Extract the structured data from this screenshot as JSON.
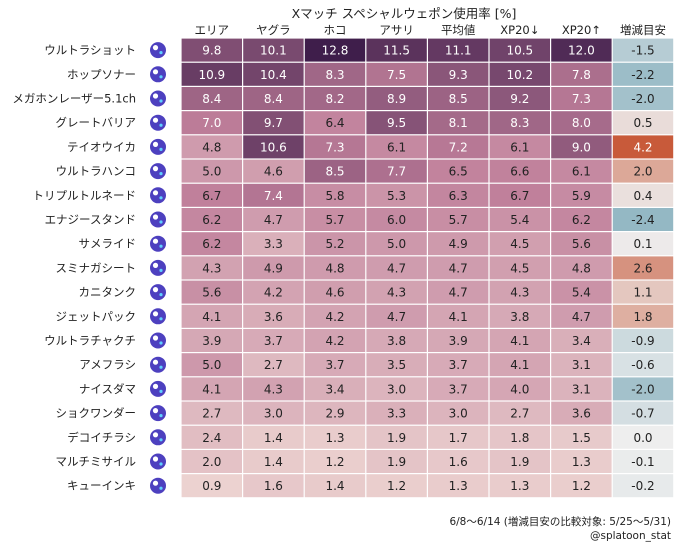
{
  "chart_data": {
    "type": "heatmap",
    "title": "Xマッチ スペシャルウェポン使用率 [%]",
    "columns": [
      "エリア",
      "ヤグラ",
      "ホコ",
      "アサリ",
      "平均値",
      "XP20↓",
      "XP20↑",
      "増減目安"
    ],
    "rows": [
      {
        "name": "ウルトラショット",
        "icon": "ultra-shot-icon",
        "values": [
          9.8,
          10.1,
          12.8,
          11.5,
          11.1,
          10.5,
          12.0
        ],
        "change": -1.5
      },
      {
        "name": "ホップソナー",
        "icon": "wave-breaker-icon",
        "values": [
          10.9,
          10.4,
          8.3,
          7.5,
          9.3,
          10.2,
          7.8
        ],
        "change": -2.2
      },
      {
        "name": "メガホンレーザー5.1ch",
        "icon": "killer-wail-icon",
        "values": [
          8.4,
          8.4,
          8.2,
          8.9,
          8.5,
          9.2,
          7.3
        ],
        "change": -2.0
      },
      {
        "name": "グレートバリア",
        "icon": "big-bubbler-icon",
        "values": [
          7.0,
          9.7,
          6.4,
          9.5,
          8.1,
          8.3,
          8.0
        ],
        "change": 0.5
      },
      {
        "name": "テイオウイカ",
        "icon": "kraken-royale-icon",
        "values": [
          4.8,
          10.6,
          7.3,
          6.1,
          7.2,
          6.1,
          9.0
        ],
        "change": 4.2
      },
      {
        "name": "ウルトラハンコ",
        "icon": "ultra-stamp-icon",
        "values": [
          5.0,
          4.6,
          8.5,
          7.7,
          6.5,
          6.6,
          6.1
        ],
        "change": 2.0
      },
      {
        "name": "トリプルトルネード",
        "icon": "triple-inkstrike-icon",
        "values": [
          6.7,
          7.4,
          5.8,
          5.3,
          6.3,
          6.7,
          5.9
        ],
        "change": 0.4
      },
      {
        "name": "エナジースタンド",
        "icon": "tacticooler-icon",
        "values": [
          6.2,
          4.7,
          5.7,
          6.0,
          5.7,
          5.4,
          6.2
        ],
        "change": -2.4
      },
      {
        "name": "サメライド",
        "icon": "reefslider-icon",
        "values": [
          6.2,
          3.3,
          5.2,
          5.0,
          4.9,
          4.5,
          5.6
        ],
        "change": 0.1
      },
      {
        "name": "スミナガシート",
        "icon": "ink-vac-icon",
        "values": [
          4.3,
          4.9,
          4.8,
          4.7,
          4.7,
          4.5,
          4.8
        ],
        "change": 2.6
      },
      {
        "name": "カニタンク",
        "icon": "crab-tank-icon",
        "values": [
          5.6,
          4.2,
          4.6,
          4.3,
          4.7,
          4.3,
          5.4
        ],
        "change": 1.1
      },
      {
        "name": "ジェットパック",
        "icon": "inkjet-icon",
        "values": [
          4.1,
          3.6,
          4.2,
          4.7,
          4.1,
          3.8,
          4.7
        ],
        "change": 1.8
      },
      {
        "name": "ウルトラチャクチ",
        "icon": "splashdown-icon",
        "values": [
          3.9,
          3.7,
          4.2,
          3.8,
          3.9,
          4.1,
          3.4
        ],
        "change": -0.9
      },
      {
        "name": "アメフラシ",
        "icon": "inkstorm-icon",
        "values": [
          5.0,
          2.7,
          3.7,
          3.5,
          3.7,
          4.1,
          3.1
        ],
        "change": -0.6
      },
      {
        "name": "ナイスダマ",
        "icon": "booyah-bomb-icon",
        "values": [
          4.1,
          4.3,
          3.4,
          3.0,
          3.7,
          4.0,
          3.1
        ],
        "change": -2.0
      },
      {
        "name": "ショクワンダー",
        "icon": "zipcaster-icon",
        "values": [
          2.7,
          3.0,
          2.9,
          3.3,
          3.0,
          2.7,
          3.6
        ],
        "change": -0.7
      },
      {
        "name": "デコイチラシ",
        "icon": "super-chump-icon",
        "values": [
          2.4,
          1.4,
          1.3,
          1.9,
          1.7,
          1.8,
          1.5
        ],
        "change": 0.0
      },
      {
        "name": "マルチミサイル",
        "icon": "tenta-missiles-icon",
        "values": [
          2.0,
          1.4,
          1.2,
          1.9,
          1.6,
          1.9,
          1.3
        ],
        "change": -0.1
      },
      {
        "name": "キューインキ",
        "icon": "ink-vac-icon",
        "values": [
          0.9,
          1.6,
          1.4,
          1.2,
          1.3,
          1.3,
          1.2
        ],
        "change": -0.2
      }
    ]
  },
  "footer": {
    "period": "6/8〜6/14 (増減目安の比較対象: 5/25〜5/31)",
    "credit": "@splatoon_stat"
  },
  "colors": {
    "usage_low": "#ecd2d0",
    "usage_mid": "#bf7e9a",
    "usage_high": "#3f1e4b",
    "change_negative": "#94b8c4",
    "change_neutral": "#eeeeee",
    "change_positive": "#c85a3a",
    "icon": "#3a2bb8"
  }
}
